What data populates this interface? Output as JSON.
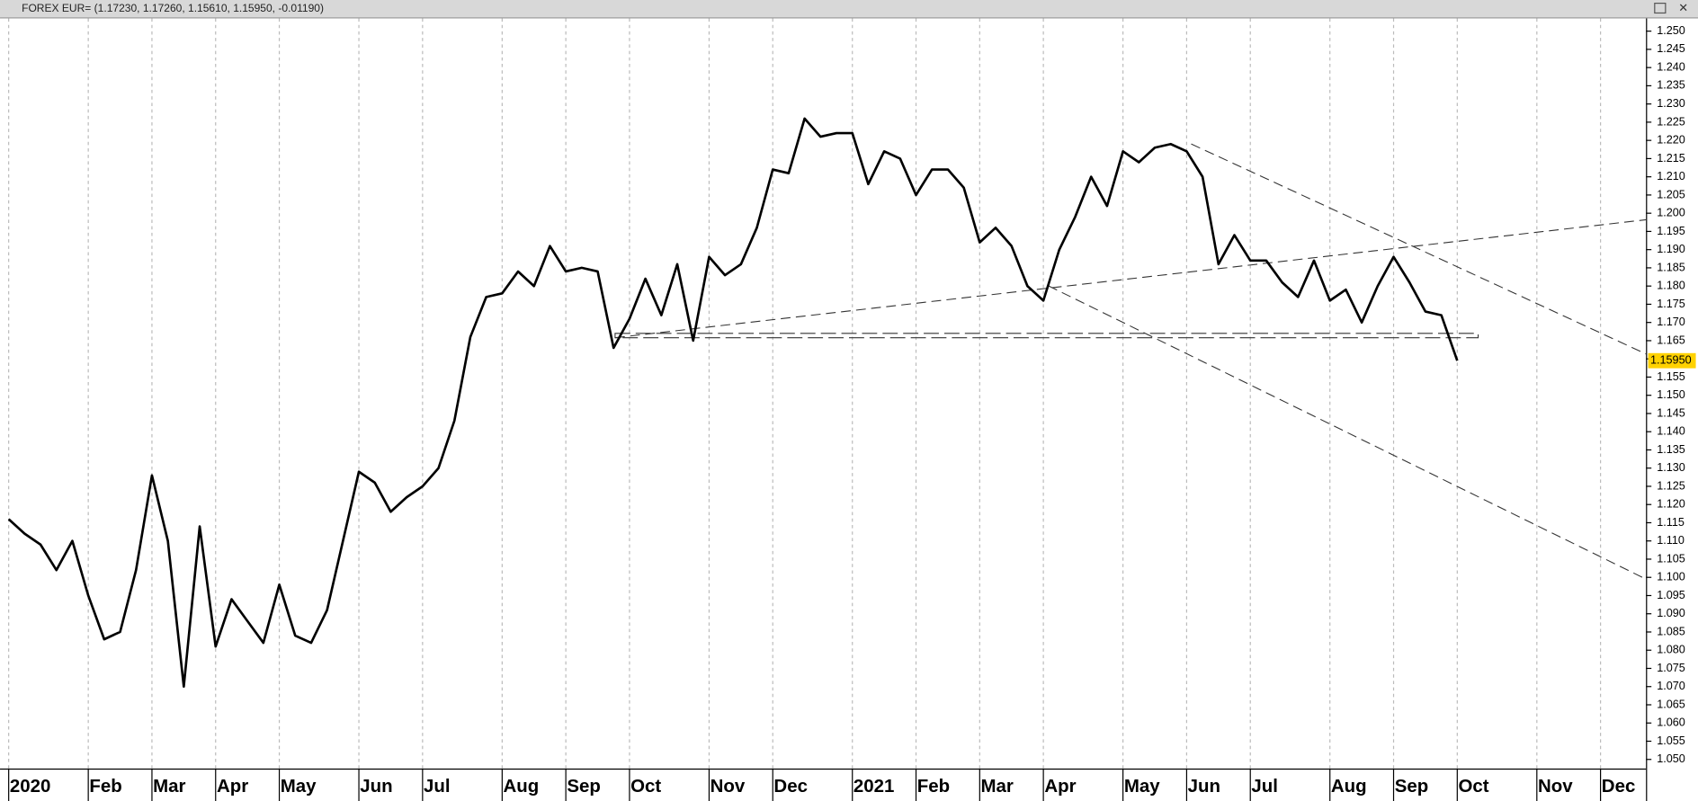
{
  "chart_data": {
    "type": "line",
    "title": "FOREX EUR= (1.17230, 1.17260, 1.15610, 1.15950, -0.01190)",
    "categories": [
      "2020",
      null,
      null,
      null,
      null,
      "Feb",
      null,
      null,
      null,
      "Mar",
      null,
      null,
      null,
      "Apr",
      null,
      null,
      null,
      "May",
      null,
      null,
      null,
      null,
      "Jun",
      null,
      null,
      null,
      "Jul",
      null,
      null,
      null,
      null,
      "Aug",
      null,
      null,
      null,
      "Sep",
      null,
      null,
      null,
      "Oct",
      null,
      null,
      null,
      null,
      "Nov",
      null,
      null,
      null,
      "Dec",
      null,
      null,
      null,
      null,
      "2021",
      null,
      null,
      null,
      "Feb",
      null,
      null,
      null,
      "Mar",
      null,
      null,
      null,
      "Apr",
      null,
      null,
      null,
      null,
      "May",
      null,
      null,
      null,
      "Jun",
      null,
      null,
      null,
      "Jul",
      null,
      null,
      null,
      null,
      "Aug",
      null,
      null,
      null,
      "Sep",
      null,
      null,
      null,
      "Oct",
      null,
      null,
      null,
      null,
      "Nov",
      null,
      null,
      null,
      "Dec",
      null,
      null,
      null
    ],
    "values": [
      1.116,
      1.112,
      1.109,
      1.102,
      1.11,
      1.095,
      1.083,
      1.085,
      1.102,
      1.128,
      1.11,
      1.07,
      1.114,
      1.081,
      1.094,
      1.088,
      1.082,
      1.098,
      1.084,
      1.082,
      1.091,
      1.11,
      1.129,
      1.126,
      1.118,
      1.122,
      1.125,
      1.13,
      1.143,
      1.166,
      1.177,
      1.178,
      1.184,
      1.18,
      1.191,
      1.184,
      1.185,
      1.184,
      1.163,
      1.171,
      1.182,
      1.172,
      1.186,
      1.165,
      1.188,
      1.183,
      1.186,
      1.196,
      1.212,
      1.211,
      1.226,
      1.221,
      1.222,
      1.222,
      1.208,
      1.217,
      1.215,
      1.205,
      1.212,
      1.212,
      1.207,
      1.192,
      1.196,
      1.191,
      1.18,
      1.176,
      1.19,
      1.199,
      1.21,
      1.202,
      1.217,
      1.214,
      1.218,
      1.219,
      1.217,
      1.21,
      1.186,
      1.194,
      1.187,
      1.187,
      1.181,
      1.177,
      1.187,
      1.176,
      1.179,
      1.17,
      1.18,
      1.188,
      1.181,
      1.173,
      1.172,
      1.1595,
      null,
      null,
      null,
      null,
      null,
      null,
      null,
      null,
      null,
      null,
      null,
      null
    ],
    "value_labels": [
      null,
      null,
      null,
      null,
      null,
      null,
      null,
      null,
      null,
      null,
      null,
      null,
      null,
      null,
      null,
      null,
      null,
      null,
      null,
      null,
      null,
      null,
      null,
      null,
      null,
      null,
      null,
      null,
      null,
      null,
      null,
      null,
      null,
      null,
      null,
      null,
      null,
      null,
      null,
      null,
      null,
      null,
      null,
      null,
      null,
      null,
      null,
      null,
      null,
      null,
      null,
      null,
      null,
      null,
      null,
      null,
      null,
      null,
      null,
      null,
      null,
      null,
      null,
      null,
      null,
      null,
      null,
      null,
      null,
      null,
      null,
      null,
      null,
      null,
      null,
      null,
      null,
      null,
      null,
      null,
      null,
      null,
      null,
      null,
      null,
      null,
      null,
      null,
      null,
      null,
      null,
      "1.15950",
      null,
      null,
      null,
      null,
      null,
      null,
      null,
      null,
      null,
      null,
      null,
      null
    ],
    "color": "#000000",
    "ylim": [
      1.0475,
      1.2535
    ],
    "yticks": [
      {
        "value": 1.05,
        "label": "1.050"
      },
      {
        "value": 1.055,
        "label": "1.055"
      },
      {
        "value": 1.06,
        "label": "1.060"
      },
      {
        "value": 1.065,
        "label": "1.065"
      },
      {
        "value": 1.07,
        "label": "1.070"
      },
      {
        "value": 1.075,
        "label": "1.075"
      },
      {
        "value": 1.08,
        "label": "1.080"
      },
      {
        "value": 1.085,
        "label": "1.085"
      },
      {
        "value": 1.09,
        "label": "1.090"
      },
      {
        "value": 1.095,
        "label": "1.095"
      },
      {
        "value": 1.1,
        "label": "1.100"
      },
      {
        "value": 1.105,
        "label": "1.105"
      },
      {
        "value": 1.11,
        "label": "1.110"
      },
      {
        "value": 1.115,
        "label": "1.115"
      },
      {
        "value": 1.12,
        "label": "1.120"
      },
      {
        "value": 1.125,
        "label": "1.125"
      },
      {
        "value": 1.13,
        "label": "1.130"
      },
      {
        "value": 1.135,
        "label": "1.135"
      },
      {
        "value": 1.14,
        "label": "1.140"
      },
      {
        "value": 1.145,
        "label": "1.145"
      },
      {
        "value": 1.15,
        "label": "1.150"
      },
      {
        "value": 1.155,
        "label": "1.155"
      },
      {
        "value": 1.16,
        "label": "1.160"
      },
      {
        "value": 1.165,
        "label": "1.165"
      },
      {
        "value": 1.17,
        "label": "1.170"
      },
      {
        "value": 1.175,
        "label": "1.175"
      },
      {
        "value": 1.18,
        "label": "1.180"
      },
      {
        "value": 1.185,
        "label": "1.185"
      },
      {
        "value": 1.19,
        "label": "1.190"
      },
      {
        "value": 1.195,
        "label": "1.195"
      },
      {
        "value": 1.2,
        "label": "1.200"
      },
      {
        "value": 1.205,
        "label": "1.205"
      },
      {
        "value": 1.21,
        "label": "1.210"
      },
      {
        "value": 1.215,
        "label": "1.215"
      },
      {
        "value": 1.22,
        "label": "1.220"
      },
      {
        "value": 1.225,
        "label": "1.225"
      },
      {
        "value": 1.23,
        "label": "1.230"
      },
      {
        "value": 1.235,
        "label": "1.235"
      },
      {
        "value": 1.24,
        "label": "1.240"
      },
      {
        "value": 1.245,
        "label": "1.245"
      },
      {
        "value": 1.25,
        "label": "1.250"
      }
    ],
    "grid": true
  }
}
